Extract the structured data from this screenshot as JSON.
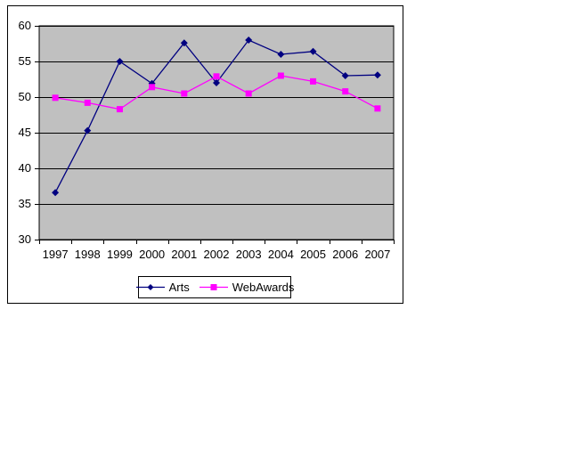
{
  "chart_data": {
    "type": "line",
    "title": "",
    "xlabel": "",
    "ylabel": "",
    "categories": [
      "1997",
      "1998",
      "1999",
      "2000",
      "2001",
      "2002",
      "2003",
      "2004",
      "2005",
      "2006",
      "2007"
    ],
    "series": [
      {
        "name": "Arts",
        "color": "#000080",
        "marker": "diamond",
        "values": [
          36.6,
          45.3,
          55.0,
          51.9,
          57.6,
          52.0,
          58.0,
          56.0,
          56.4,
          53.0,
          53.1
        ]
      },
      {
        "name": "WebAwards",
        "color": "#FF00FF",
        "marker": "square",
        "values": [
          49.9,
          49.2,
          48.3,
          51.4,
          50.5,
          52.9,
          50.5,
          53.0,
          52.2,
          50.8,
          48.4
        ]
      }
    ],
    "ylim": [
      30,
      60
    ],
    "yticks": [
      30,
      35,
      40,
      45,
      50,
      55,
      60
    ],
    "ytick_labels": [
      "30",
      "35",
      "40",
      "45",
      "50",
      "55",
      "60"
    ],
    "grid": true,
    "legend_position": "bottom",
    "colors": {
      "plot_bg": "#C0C0C0",
      "gridline": "#000000",
      "axis": "#000000",
      "chart_border": "#000000",
      "legend_border": "#000000",
      "text": "#000000",
      "chart_bg": "#FFFFFF"
    }
  }
}
